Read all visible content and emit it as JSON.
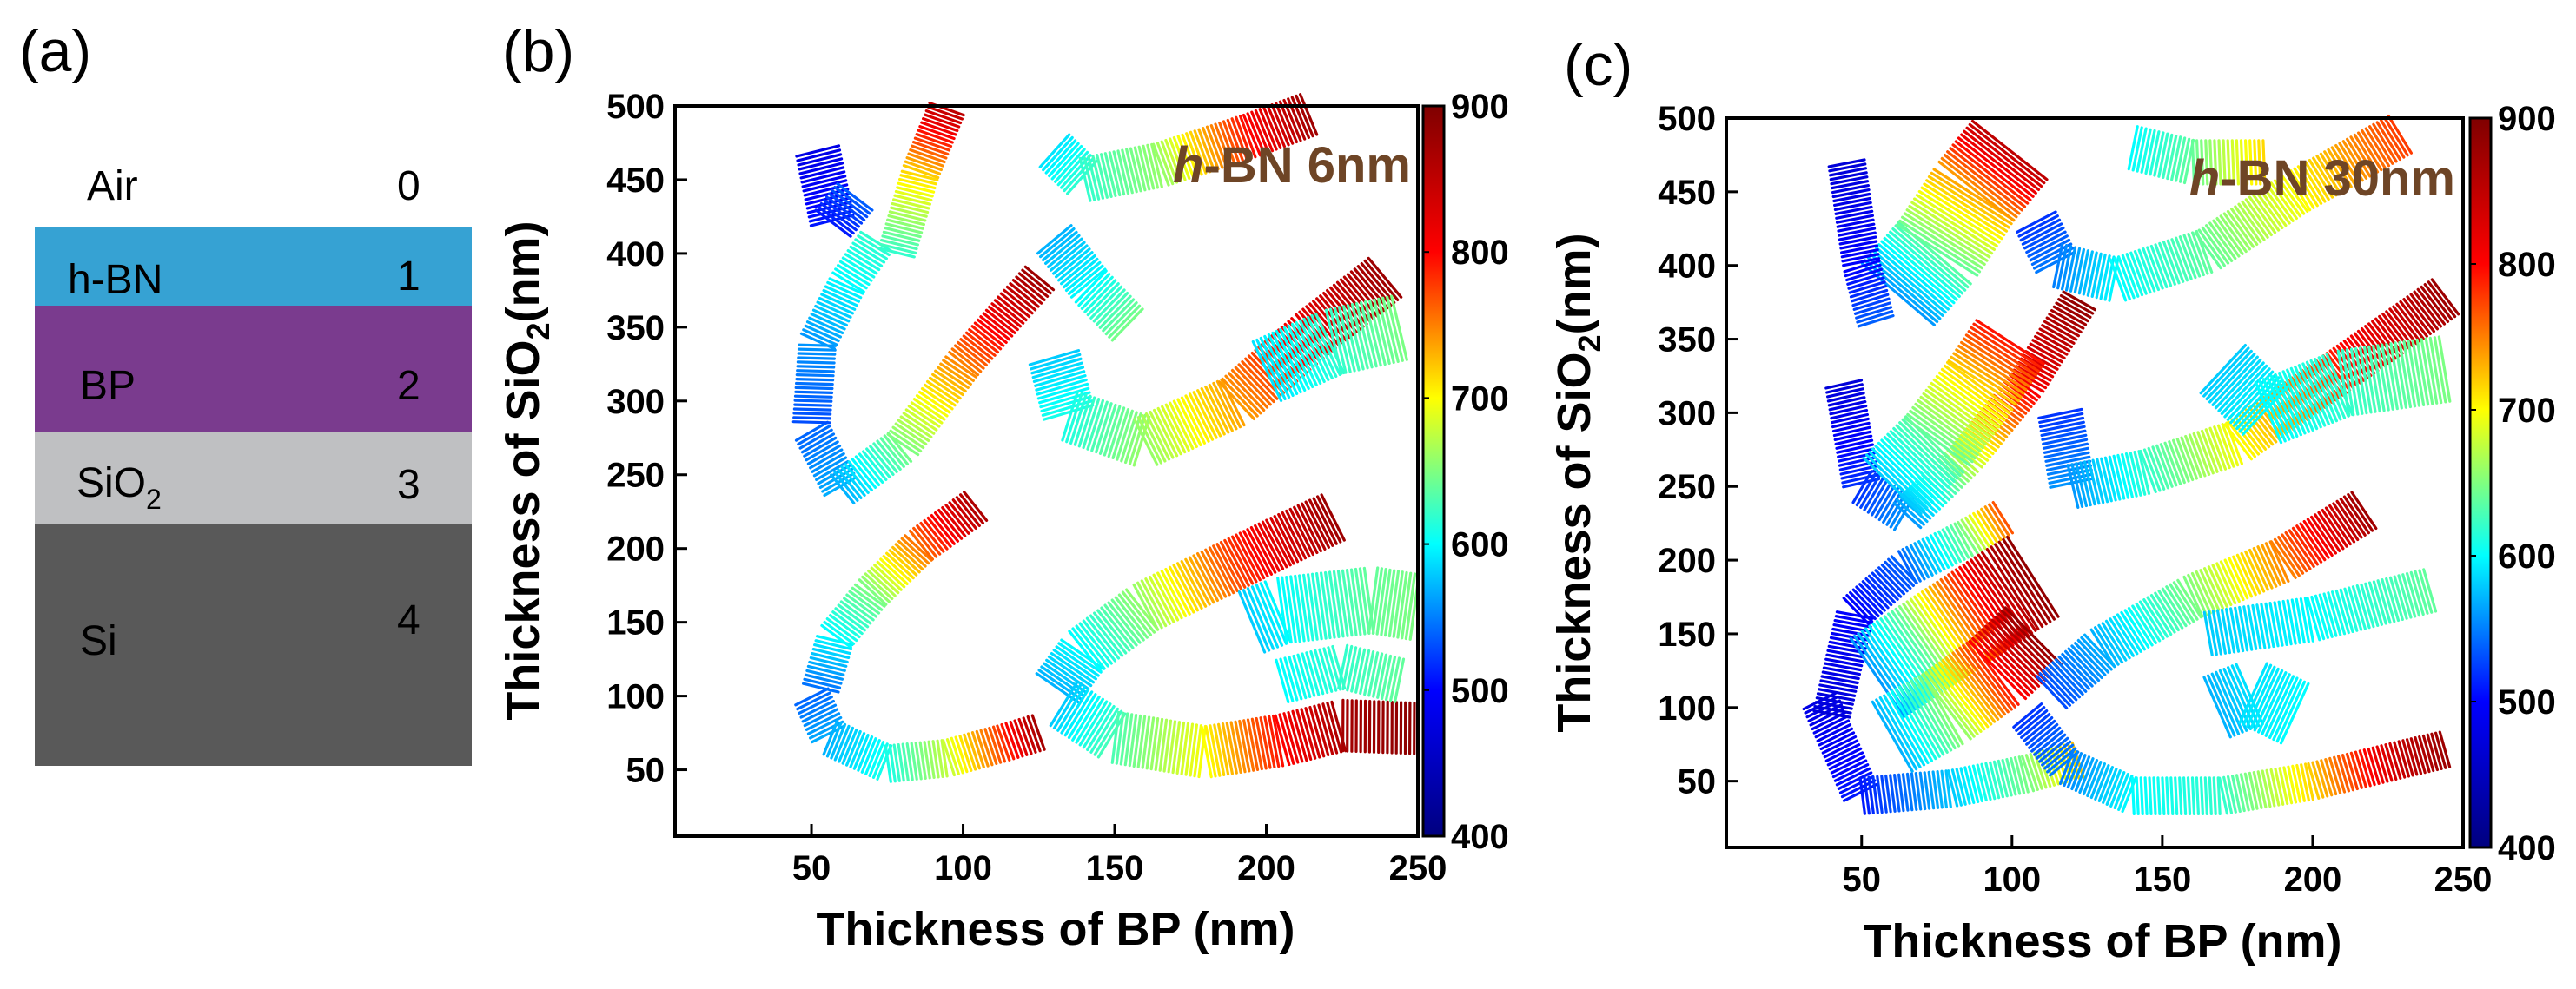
{
  "panel_a": {
    "label": "(a)",
    "layers": [
      {
        "name": "Air",
        "index": "0",
        "color": "#ffffff"
      },
      {
        "name": "h-BN",
        "index": "1",
        "color": "#36a2d3"
      },
      {
        "name": "BP",
        "index": "2",
        "color": "#7a3b8e"
      },
      {
        "name": "SiO",
        "name_sub": "2",
        "index": "3",
        "color": "#bfc0c2"
      },
      {
        "name": "Si",
        "index": "4",
        "color": "#595959"
      }
    ]
  },
  "colorbar_colors": [
    "#00007f",
    "#0000ff",
    "#00ffff",
    "#ffff00",
    "#ff0000",
    "#7f0000"
  ],
  "chart_data": [
    {
      "type": "heatmap",
      "panel_label": "(b)",
      "annotation": {
        "italic": "h",
        "rest": "-BN 6nm"
      },
      "xlabel": "Thickness of BP (nm)",
      "ylabel": {
        "main": "Thickness of SiO",
        "sub": "2",
        "unit": "(nm)"
      },
      "xlim": [
        5,
        250
      ],
      "ylim": [
        5,
        500
      ],
      "xticks": [
        50,
        100,
        150,
        200,
        250
      ],
      "yticks": [
        50,
        100,
        150,
        200,
        250,
        300,
        350,
        400,
        450,
        500
      ],
      "colorbar": {
        "range": [
          400,
          900
        ],
        "ticks": [
          400,
          500,
          600,
          700,
          800,
          900
        ]
      },
      "bands": [
        {
          "w": 4,
          "points": [
            [
              50,
              100,
              540
            ],
            [
              56,
              72,
              570
            ],
            [
              75,
              54,
              610
            ],
            [
              95,
              58,
              680
            ],
            [
              113,
              68,
              780
            ],
            [
              126,
              76,
              880
            ]
          ]
        },
        {
          "w": 4,
          "points": [
            [
              53,
              105,
              545
            ],
            [
              58,
              140,
              600
            ],
            [
              70,
              170,
              650
            ],
            [
              86,
              202,
              760
            ],
            [
              105,
              230,
              870
            ]
          ]
        },
        {
          "w": 6,
          "points": [
            [
              131,
              105,
              570
            ],
            [
              140,
              130,
              600
            ],
            [
              160,
              160,
              660
            ],
            [
              185,
              185,
              760
            ],
            [
              205,
              205,
              830
            ],
            [
              223,
              222,
              880
            ]
          ]
        },
        {
          "w": 6,
          "points": [
            [
              133,
              95,
              580
            ],
            [
              150,
              72,
              630
            ],
            [
              180,
              62,
              700
            ],
            [
              205,
              70,
              800
            ],
            [
              225,
              80,
              870
            ],
            [
              250,
              78,
              890
            ]
          ]
        },
        {
          "w": 8,
          "points": [
            [
              195,
              150,
              580
            ],
            [
              205,
              158,
              600
            ],
            [
              235,
              165,
              640
            ],
            [
              250,
              160,
              650
            ]
          ]
        },
        {
          "w": 5,
          "points": [
            [
              205,
              110,
              600
            ],
            [
              225,
              120,
              620
            ],
            [
              245,
              110,
              640
            ]
          ]
        },
        {
          "w": 4,
          "points": [
            [
              50,
              280,
              540
            ],
            [
              60,
              240,
              570
            ],
            [
              80,
              270,
              650
            ],
            [
              100,
              325,
              750
            ],
            [
              115,
              360,
              830
            ],
            [
              126,
              385,
              880
            ]
          ]
        },
        {
          "w": 4,
          "points": [
            [
              50,
              285,
              530
            ],
            [
              52,
              340,
              560
            ],
            [
              62,
              380,
              600
            ],
            [
              72,
              410,
              620
            ]
          ]
        },
        {
          "w": 6,
          "points": [
            [
              130,
              330,
              580
            ],
            [
              135,
              290,
              610
            ],
            [
              160,
              272,
              660
            ],
            [
              190,
              300,
              740
            ],
            [
              215,
              345,
              820
            ],
            [
              240,
              385,
              880
            ]
          ]
        },
        {
          "w": 8,
          "points": [
            [
              200,
              320,
              590
            ],
            [
              222,
              340,
              620
            ],
            [
              245,
              350,
              650
            ]
          ]
        },
        {
          "w": 5,
          "points": [
            [
              130,
              410,
              570
            ],
            [
              142,
              378,
              600
            ],
            [
              155,
              350,
              650
            ]
          ]
        },
        {
          "w": 5,
          "points": [
            [
              52,
              470,
              480
            ],
            [
              57,
              420,
              510
            ],
            [
              65,
              440,
              540
            ]
          ]
        },
        {
          "w": 4,
          "points": [
            [
              78,
              400,
              620
            ],
            [
              86,
              455,
              720
            ],
            [
              95,
              500,
              860
            ]
          ]
        },
        {
          "w": 5,
          "points": [
            [
              130,
              470,
              590
            ],
            [
              140,
              450,
              620
            ],
            [
              165,
              460,
              660
            ],
            [
              195,
              480,
              800
            ],
            [
              215,
              495,
              880
            ]
          ]
        }
      ]
    },
    {
      "type": "heatmap",
      "panel_label": "(c)",
      "annotation": {
        "italic": "h",
        "rest": "-BN 30nm"
      },
      "xlabel": "Thickness of BP (nm)",
      "ylabel": {
        "main": "Thickness of SiO",
        "sub": "2",
        "unit": "(nm)"
      },
      "xlim": [
        5,
        250
      ],
      "ylim": [
        5,
        500
      ],
      "xticks": [
        50,
        100,
        150,
        200,
        250
      ],
      "yticks": [
        50,
        100,
        150,
        200,
        250,
        300,
        350,
        400,
        450,
        500
      ],
      "colorbar": {
        "range": [
          400,
          900
        ],
        "ticks": [
          400,
          500,
          600,
          700,
          800,
          900
        ]
      },
      "bands": [
        {
          "w": 4,
          "points": [
            [
              36,
              105,
              480
            ],
            [
              50,
              40,
              510
            ],
            [
              80,
              45,
              580
            ],
            [
              105,
              55,
              650
            ],
            [
              123,
              65,
              730
            ]
          ]
        },
        {
          "w": 4,
          "points": [
            [
              40,
              95,
              470
            ],
            [
              48,
              165,
              500
            ],
            [
              65,
              195,
              540
            ],
            [
              85,
              215,
              650
            ],
            [
              98,
              230,
              780
            ]
          ]
        },
        {
          "w": 12,
          "points": [
            [
              55,
              120,
              560
            ],
            [
              70,
              140,
              640
            ],
            [
              85,
              160,
              760
            ],
            [
              100,
              180,
              860
            ],
            [
              108,
              190,
              890
            ]
          ]
        },
        {
          "w": 10,
          "points": [
            [
              60,
              80,
              570
            ],
            [
              78,
              100,
              660
            ],
            [
              95,
              125,
              800
            ],
            [
              108,
              150,
              890
            ]
          ]
        },
        {
          "w": 4,
          "points": [
            [
              105,
              95,
              520
            ],
            [
              118,
              60,
              550
            ],
            [
              140,
              40,
              600
            ],
            [
              170,
              40,
              620
            ],
            [
              200,
              50,
              720
            ],
            [
              230,
              65,
              850
            ],
            [
              245,
              72,
              880
            ]
          ]
        },
        {
          "w": 5,
          "points": [
            [
              113,
              110,
              530
            ],
            [
              130,
              140,
              570
            ],
            [
              160,
              175,
              650
            ],
            [
              190,
              200,
              750
            ],
            [
              218,
              235,
              880
            ]
          ]
        },
        {
          "w": 5,
          "points": [
            [
              165,
              150,
              580
            ],
            [
              200,
              160,
              600
            ],
            [
              240,
              180,
              640
            ]
          ]
        },
        {
          "w": 8,
          "points": [
            [
              168,
              100,
              570
            ],
            [
              180,
              110,
              590
            ],
            [
              195,
              95,
              600
            ]
          ]
        },
        {
          "w": 4,
          "points": [
            [
              44,
              320,
              470
            ],
            [
              50,
              250,
              520
            ],
            [
              65,
              230,
              560
            ],
            [
              85,
              270,
              680
            ],
            [
              105,
              320,
              810
            ],
            [
              123,
              378,
              890
            ]
          ]
        },
        {
          "w": 12,
          "points": [
            [
              62,
              380,
              560
            ],
            [
              75,
              410,
              640
            ],
            [
              88,
              450,
              740
            ],
            [
              100,
              480,
              860
            ]
          ]
        },
        {
          "w": 10,
          "points": [
            [
              60,
              250,
              580
            ],
            [
              75,
              280,
              640
            ],
            [
              90,
              320,
              720
            ],
            [
              100,
              350,
              800
            ]
          ]
        },
        {
          "w": 5,
          "points": [
            [
              116,
              300,
              520
            ],
            [
              120,
              250,
              560
            ],
            [
              145,
              260,
              620
            ],
            [
              175,
              280,
              700
            ],
            [
              210,
              330,
              790
            ],
            [
              245,
              380,
              880
            ]
          ]
        },
        {
          "w": 4,
          "points": [
            [
              45,
              470,
              470
            ],
            [
              50,
              400,
              500
            ],
            [
              55,
              360,
              540
            ]
          ]
        },
        {
          "w": 5,
          "points": [
            [
              108,
              430,
              520
            ],
            [
              115,
              400,
              550
            ],
            [
              135,
              390,
              600
            ],
            [
              165,
              410,
              640
            ],
            [
              195,
              450,
              700
            ],
            [
              230,
              490,
              780
            ]
          ]
        },
        {
          "w": 8,
          "points": [
            [
              170,
              330,
              580
            ],
            [
              185,
              300,
              600
            ],
            [
              210,
              320,
              620
            ],
            [
              245,
              330,
              650
            ]
          ]
        },
        {
          "w": 5,
          "points": [
            [
              140,
              480,
              600
            ],
            [
              160,
              470,
              640
            ],
            [
              185,
              470,
              720
            ]
          ]
        }
      ]
    }
  ]
}
